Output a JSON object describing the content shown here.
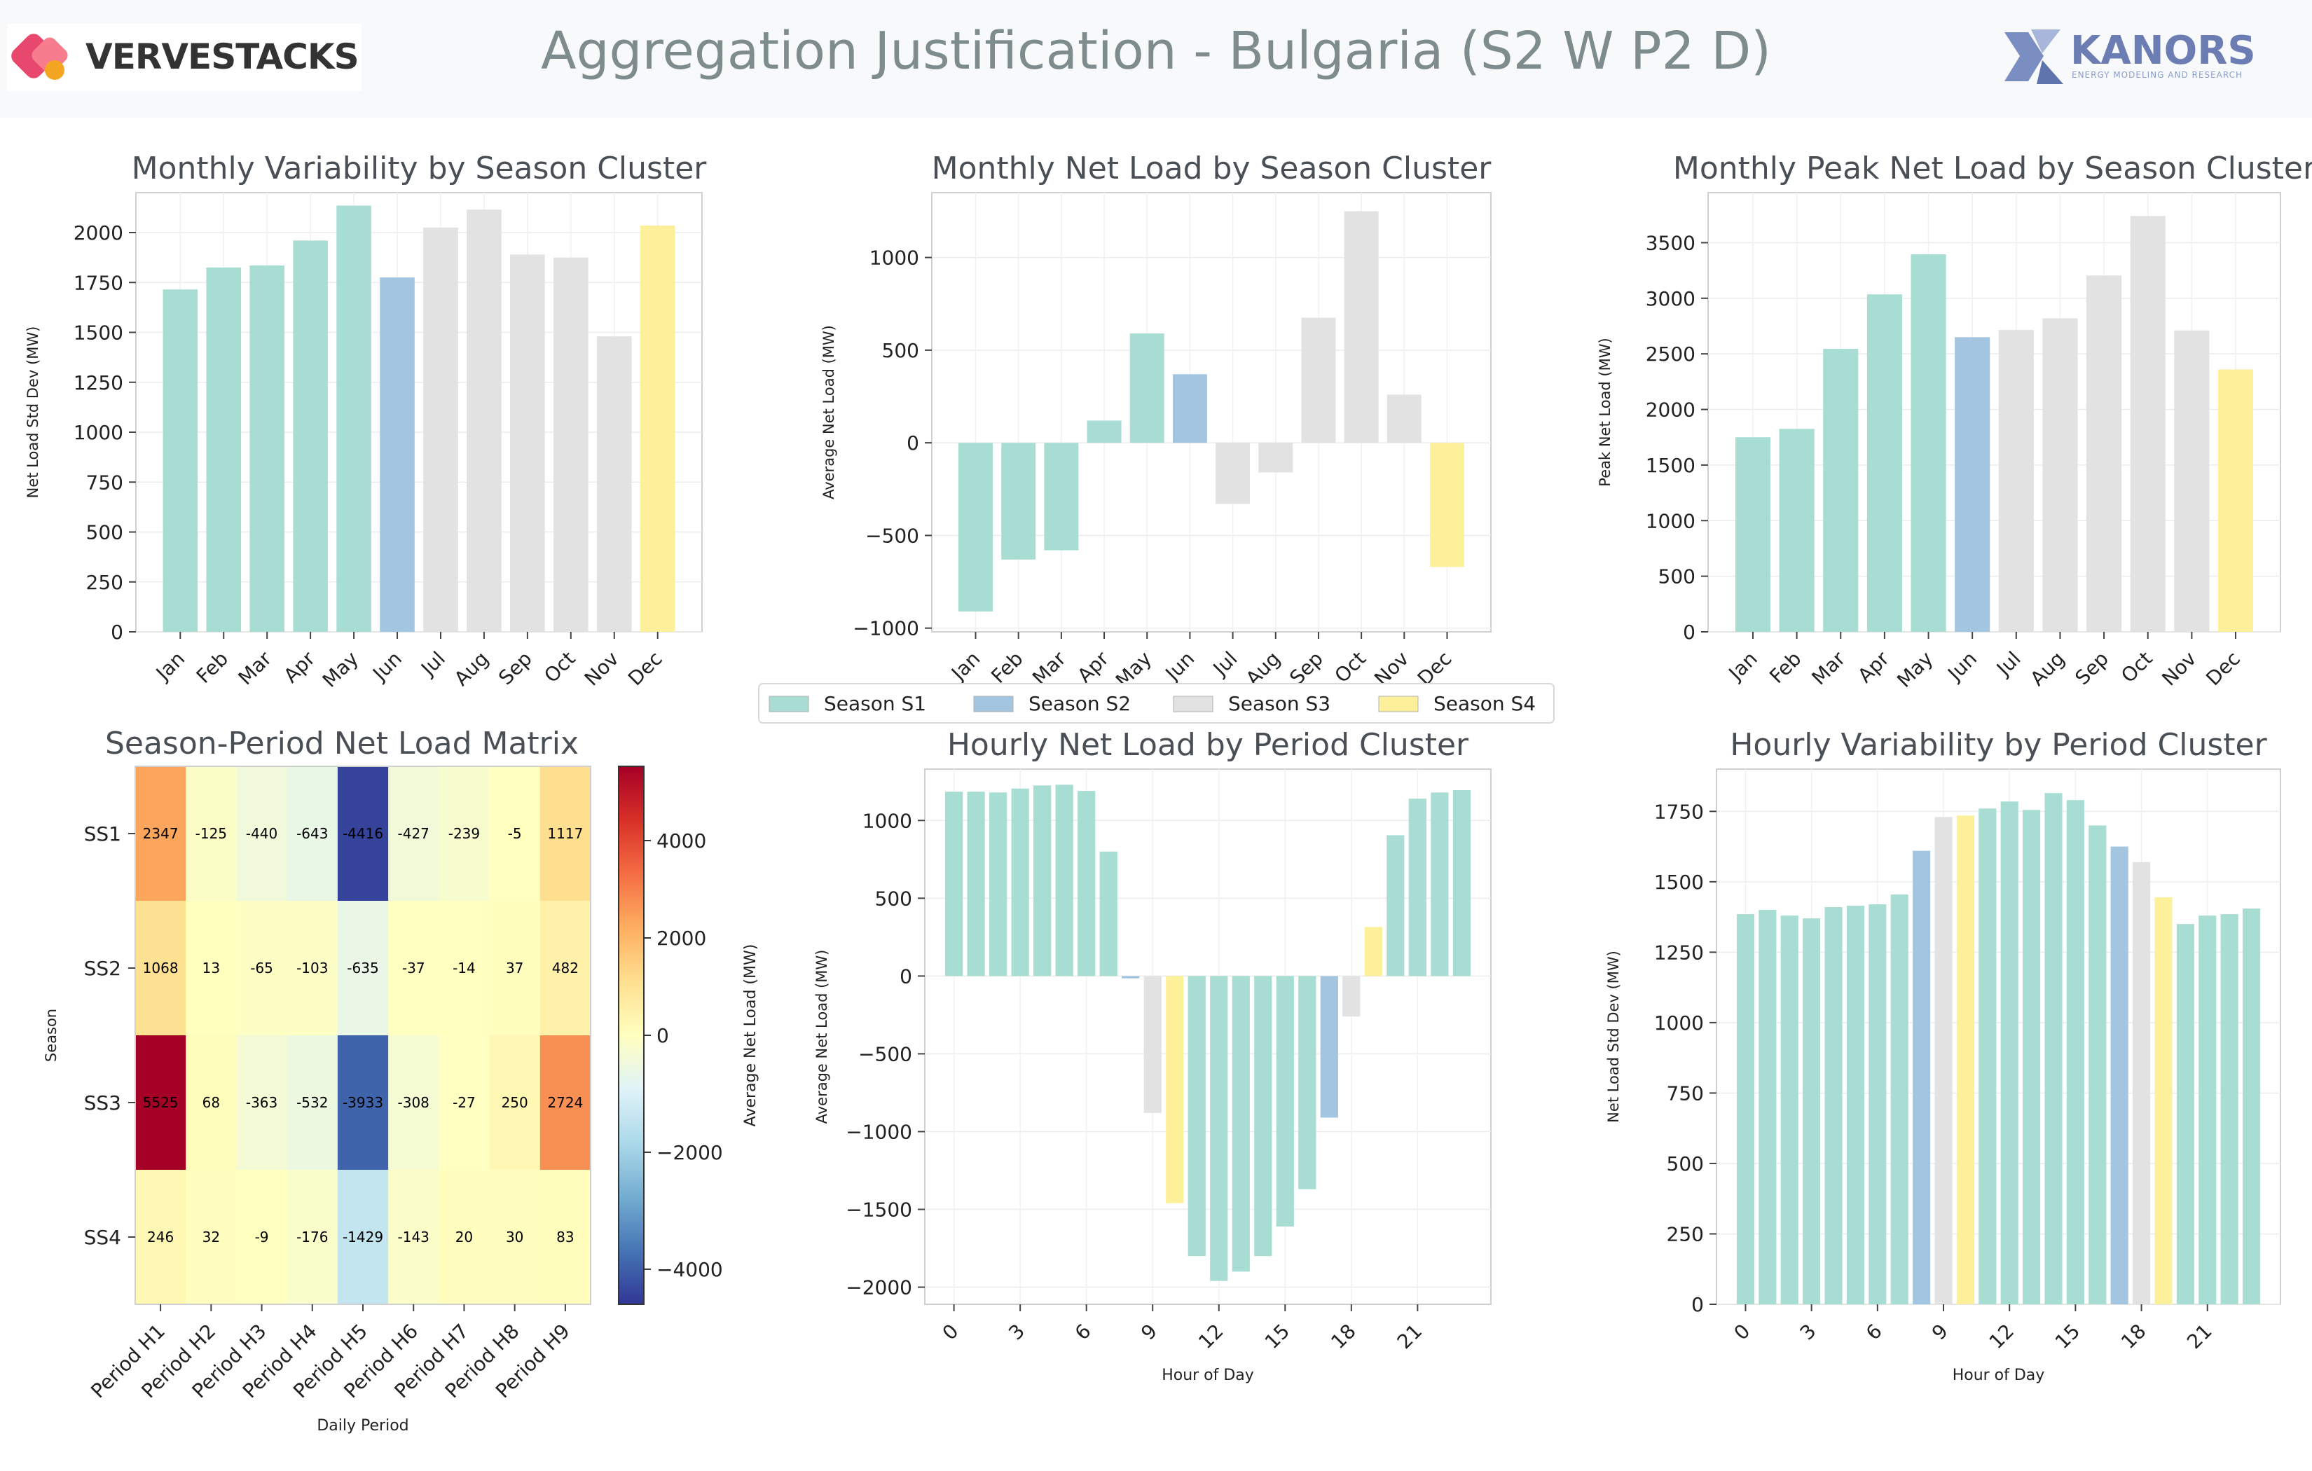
{
  "header": {
    "title": "Aggregation Justification - Bulgaria (S2 W P2 D)",
    "logo_left": "VERVESTACKS",
    "logo_right": "KANORS",
    "logo_right_sub": "ENERGY MODELING AND RESEARCH"
  },
  "colors": {
    "S1": "#a8ddd3",
    "S2": "#a4c5e0",
    "S3": "#e2e2e2",
    "S4": "#fdf09a"
  },
  "legend": {
    "placement": "center, between rows",
    "items": [
      {
        "key": "S1",
        "label": "Season S1"
      },
      {
        "key": "S2",
        "label": "Season S2"
      },
      {
        "key": "S3",
        "label": "Season S3"
      },
      {
        "key": "S4",
        "label": "Season S4"
      }
    ]
  },
  "chart_data": [
    {
      "id": "monthly-variability",
      "type": "bar",
      "title": "Monthly Variability by Season Cluster",
      "ylabel": "Net Load Std Dev (MW)",
      "xlabel": "",
      "categories": [
        "Jan",
        "Feb",
        "Mar",
        "Apr",
        "May",
        "Jun",
        "Jul",
        "Aug",
        "Sep",
        "Oct",
        "Nov",
        "Dec"
      ],
      "values": [
        1715,
        1825,
        1835,
        1960,
        2135,
        1775,
        2025,
        2115,
        1890,
        1875,
        1480,
        2035
      ],
      "color_keys": [
        "S1",
        "S1",
        "S1",
        "S1",
        "S1",
        "S2",
        "S3",
        "S3",
        "S3",
        "S3",
        "S3",
        "S4"
      ],
      "ylim": [
        0,
        2200
      ],
      "yticks": [
        0,
        250,
        500,
        750,
        1000,
        1250,
        1500,
        1750,
        2000
      ],
      "grid": true
    },
    {
      "id": "monthly-net-load",
      "type": "bar",
      "title": "Monthly Net Load by Season Cluster",
      "ylabel": "Average Net Load (MW)",
      "xlabel": "",
      "categories": [
        "Jan",
        "Feb",
        "Mar",
        "Apr",
        "May",
        "Jun",
        "Jul",
        "Aug",
        "Sep",
        "Oct",
        "Nov",
        "Dec"
      ],
      "values": [
        -910,
        -630,
        -580,
        120,
        590,
        370,
        -330,
        -160,
        675,
        1250,
        260,
        -670
      ],
      "color_keys": [
        "S1",
        "S1",
        "S1",
        "S1",
        "S1",
        "S2",
        "S3",
        "S3",
        "S3",
        "S3",
        "S3",
        "S4"
      ],
      "ylim": [
        -1020,
        1350
      ],
      "yticks": [
        -1000,
        -500,
        0,
        500,
        1000
      ],
      "grid": true
    },
    {
      "id": "monthly-peak-net-load",
      "type": "bar",
      "title": "Monthly Peak Net Load by Season Cluster",
      "ylabel": "Peak Net Load (MW)",
      "xlabel": "",
      "categories": [
        "Jan",
        "Feb",
        "Mar",
        "Apr",
        "May",
        "Jun",
        "Jul",
        "Aug",
        "Sep",
        "Oct",
        "Nov",
        "Dec"
      ],
      "values": [
        1750,
        1825,
        2545,
        3035,
        3395,
        2650,
        2715,
        2820,
        3205,
        3740,
        2710,
        2360
      ],
      "color_keys": [
        "S1",
        "S1",
        "S1",
        "S1",
        "S1",
        "S2",
        "S3",
        "S3",
        "S3",
        "S3",
        "S3",
        "S4"
      ],
      "ylim": [
        0,
        3950
      ],
      "yticks": [
        0,
        500,
        1000,
        1500,
        2000,
        2500,
        3000,
        3500
      ],
      "grid": true
    },
    {
      "id": "season-period-matrix",
      "type": "heatmap",
      "title": "Season-Period Net Load Matrix",
      "xlabel": "Daily Period",
      "ylabel": "Season",
      "colorbar_label": "Average Net Load (MW)",
      "rows": [
        "SS1",
        "SS2",
        "SS3",
        "SS4"
      ],
      "cols": [
        "Period H1",
        "Period H2",
        "Period H3",
        "Period H4",
        "Period H5",
        "Period H6",
        "Period H7",
        "Period H8",
        "Period H9"
      ],
      "values": [
        [
          2347,
          -125,
          -440,
          -643,
          -4416,
          -427,
          -239,
          -5,
          1117
        ],
        [
          1068,
          13,
          -65,
          -103,
          -635,
          -37,
          -14,
          37,
          482
        ],
        [
          5525,
          68,
          -363,
          -532,
          -3933,
          -308,
          -27,
          250,
          2724
        ],
        [
          246,
          32,
          -9,
          -176,
          -1429,
          -143,
          20,
          30,
          83
        ]
      ],
      "vlim": [
        -4600,
        5525
      ],
      "colorbar_ticks": [
        -4000,
        -2000,
        0,
        2000,
        4000
      ]
    },
    {
      "id": "hourly-net-load",
      "type": "bar",
      "title": "Hourly Net Load by Period Cluster",
      "xlabel": "Hour of Day",
      "ylabel": "Average Net Load (MW)",
      "x": [
        0,
        1,
        2,
        3,
        4,
        5,
        6,
        7,
        8,
        9,
        10,
        11,
        12,
        13,
        14,
        15,
        16,
        17,
        18,
        19,
        20,
        21,
        22,
        23
      ],
      "values": [
        1185,
        1185,
        1180,
        1205,
        1225,
        1230,
        1190,
        800,
        -15,
        -880,
        -1460,
        -1800,
        -1960,
        -1900,
        -1800,
        -1610,
        -1370,
        -910,
        -260,
        315,
        905,
        1140,
        1180,
        1195
      ],
      "color_keys": [
        "S1",
        "S1",
        "S1",
        "S1",
        "S1",
        "S1",
        "S1",
        "S1",
        "S2",
        "S3",
        "S4",
        "S1",
        "S1",
        "S1",
        "S1",
        "S1",
        "S1",
        "S2",
        "S3",
        "S4",
        "S1",
        "S1",
        "S1",
        "S1"
      ],
      "ylim": [
        -2110,
        1330
      ],
      "yticks": [
        -2000,
        -1500,
        -1000,
        -500,
        0,
        500,
        1000
      ],
      "xticks": [
        0,
        3,
        6,
        9,
        12,
        15,
        18,
        21
      ],
      "grid": true
    },
    {
      "id": "hourly-variability",
      "type": "bar",
      "title": "Hourly Variability by Period Cluster",
      "xlabel": "Hour of Day",
      "ylabel": "Net Load Std Dev (MW)",
      "x": [
        0,
        1,
        2,
        3,
        4,
        5,
        6,
        7,
        8,
        9,
        10,
        11,
        12,
        13,
        14,
        15,
        16,
        17,
        18,
        19,
        20,
        21,
        22,
        23
      ],
      "values": [
        1385,
        1400,
        1380,
        1370,
        1410,
        1415,
        1420,
        1455,
        1610,
        1730,
        1735,
        1760,
        1785,
        1755,
        1815,
        1790,
        1700,
        1625,
        1570,
        1445,
        1350,
        1380,
        1385,
        1405
      ],
      "color_keys": [
        "S1",
        "S1",
        "S1",
        "S1",
        "S1",
        "S1",
        "S1",
        "S1",
        "S2",
        "S3",
        "S4",
        "S1",
        "S1",
        "S1",
        "S1",
        "S1",
        "S1",
        "S2",
        "S3",
        "S4",
        "S1",
        "S1",
        "S1",
        "S1"
      ],
      "ylim": [
        0,
        1900
      ],
      "yticks": [
        0,
        250,
        500,
        750,
        1000,
        1250,
        1500,
        1750
      ],
      "xticks": [
        0,
        3,
        6,
        9,
        12,
        15,
        18,
        21
      ],
      "grid": true
    }
  ]
}
